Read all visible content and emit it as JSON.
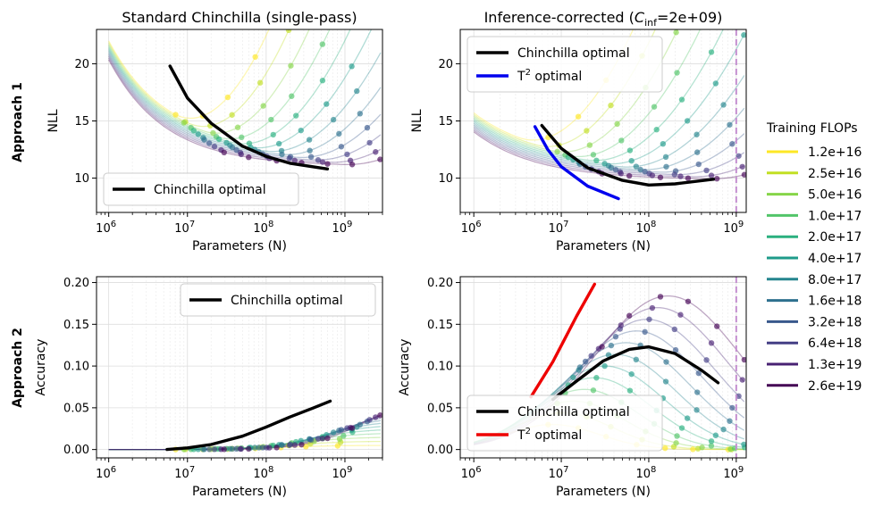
{
  "row_labels": [
    "Approach 1",
    "Approach 2"
  ],
  "flop_legend": {
    "title": "Training FLOPs",
    "entries": [
      "1.2e+16",
      "2.5e+16",
      "5.0e+16",
      "1.0e+17",
      "2.0e+17",
      "4.0e+17",
      "8.0e+17",
      "1.6e+18",
      "3.2e+18",
      "6.4e+18",
      "1.3e+19",
      "2.6e+19"
    ],
    "colors": [
      "#fde725",
      "#c2df23",
      "#86d549",
      "#52c569",
      "#2ab07f",
      "#1e9b8a",
      "#25858e",
      "#2d708e",
      "#38588c",
      "#433e85",
      "#482173",
      "#440154"
    ]
  },
  "chart_data": [
    {
      "type": "line",
      "title": "Standard Chinchilla (single-pass)",
      "xlabel": "Parameters (N)",
      "ylabel": "NLL",
      "x_scale": "log",
      "xlim": [
        700000,
        3000000000
      ],
      "ylim": [
        7,
        23
      ],
      "yticks": [
        10,
        15,
        20
      ],
      "grid": true,
      "legend_position": "lower-left",
      "series": [
        {
          "name": "Chinchilla optimal",
          "color": "#000000",
          "x": [
            6000000,
            10000000,
            20000000,
            50000000,
            100000000,
            200000000,
            600000000
          ],
          "y": [
            19.8,
            17.0,
            14.8,
            12.8,
            11.9,
            11.3,
            10.8
          ]
        }
      ]
    },
    {
      "type": "line",
      "title": "Inference-corrected (C_inf=2e+09)",
      "title_prefix": "Inference-corrected (",
      "title_var": "C",
      "title_sub": "inf",
      "title_suffix": "=2e+09)",
      "xlabel": "Parameters (N)",
      "ylabel": "NLL",
      "x_scale": "log",
      "xlim": [
        700000,
        1300000000
      ],
      "ylim": [
        7,
        23
      ],
      "yticks": [
        10,
        15,
        20
      ],
      "vline_x": 1000000000,
      "grid": true,
      "legend_position": "upper-left",
      "series": [
        {
          "name": "Chinchilla optimal",
          "color": "#000000",
          "x": [
            6000000,
            10000000,
            20000000,
            50000000,
            100000000,
            200000000,
            550000000
          ],
          "y": [
            14.6,
            12.6,
            10.9,
            9.8,
            9.4,
            9.5,
            9.9
          ]
        },
        {
          "name": "T",
          "name_sup": "2",
          "name_suffix": " optimal",
          "color": "#0000ee",
          "x": [
            5000000,
            7000000,
            10000000,
            20000000,
            45000000
          ],
          "y": [
            14.5,
            12.5,
            11.0,
            9.3,
            8.2
          ]
        }
      ]
    },
    {
      "type": "line",
      "title": "",
      "xlabel": "Parameters (N)",
      "ylabel": "Accuracy",
      "x_scale": "log",
      "xlim": [
        700000,
        3000000000
      ],
      "ylim": [
        -0.01,
        0.207
      ],
      "yticks": [
        0.0,
        0.05,
        0.1,
        0.15,
        0.2
      ],
      "grid": true,
      "legend_position": "upper-right",
      "series": [
        {
          "name": "Chinchilla optimal",
          "color": "#000000",
          "x": [
            5500000,
            10000000,
            20000000,
            50000000,
            100000000,
            200000000,
            400000000,
            650000000
          ],
          "y": [
            0.0,
            0.002,
            0.006,
            0.016,
            0.027,
            0.039,
            0.05,
            0.058
          ]
        }
      ]
    },
    {
      "type": "line",
      "title": "",
      "xlabel": "Parameters (N)",
      "ylabel": "Accuracy",
      "x_scale": "log",
      "xlim": [
        700000,
        1300000000
      ],
      "ylim": [
        -0.01,
        0.207
      ],
      "yticks": [
        0.0,
        0.05,
        0.1,
        0.15,
        0.2
      ],
      "vline_x": 1000000000,
      "grid": true,
      "legend_position": "lower-left",
      "series": [
        {
          "name": "Chinchilla optimal",
          "color": "#000000",
          "x": [
            8000000,
            15000000,
            30000000,
            60000000,
            100000000,
            200000000,
            400000000,
            620000000
          ],
          "y": [
            0.06,
            0.082,
            0.106,
            0.12,
            0.123,
            0.115,
            0.095,
            0.08
          ]
        },
        {
          "name": "T",
          "name_sup": "2",
          "name_suffix": " optimal",
          "color": "#ee0000",
          "x": [
            4500000,
            8000000,
            15000000,
            24000000
          ],
          "y": [
            0.063,
            0.105,
            0.16,
            0.198
          ]
        }
      ]
    }
  ]
}
